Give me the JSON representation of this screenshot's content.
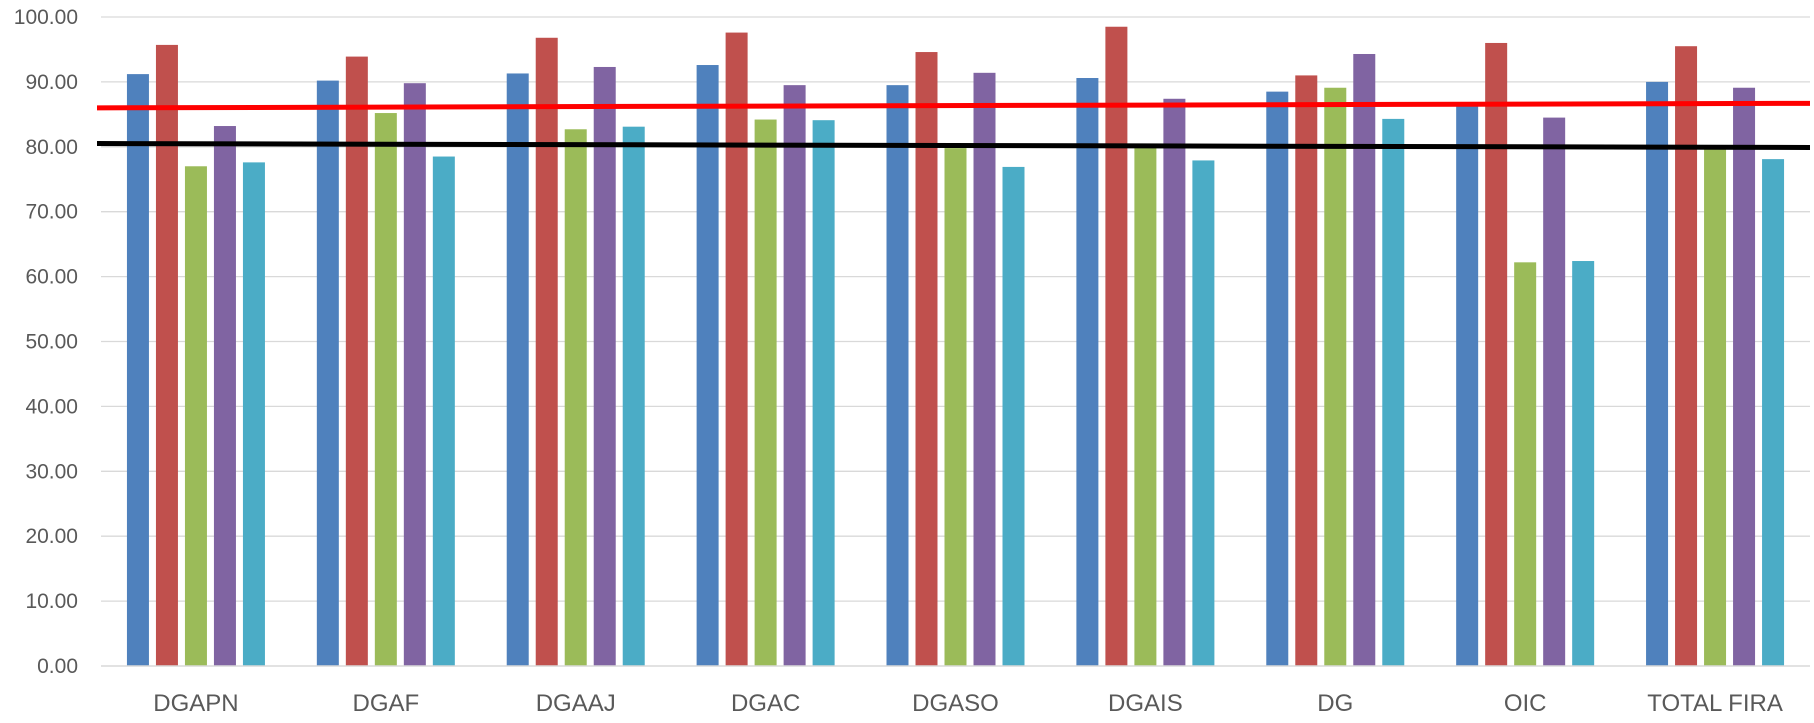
{
  "chart_data": {
    "type": "bar",
    "title": "",
    "xlabel": "",
    "ylabel": "",
    "ylim": [
      0,
      100
    ],
    "y_tick_step": 10,
    "y_tick_labels": [
      "0.00",
      "10.00",
      "20.00",
      "30.00",
      "40.00",
      "50.00",
      "60.00",
      "70.00",
      "80.00",
      "90.00",
      "100.00"
    ],
    "grid": true,
    "legend": "none",
    "categories": [
      "DGAPN",
      "DGAF",
      "DGAAJ",
      "DGAC",
      "DGASO",
      "DGAIS",
      "DG",
      "OIC",
      "TOTAL FIRA"
    ],
    "series": [
      {
        "color": "#4F81BD",
        "values": [
          91.2,
          90.2,
          91.3,
          92.6,
          89.5,
          90.6,
          88.5,
          86.5,
          90.0
        ]
      },
      {
        "color": "#C0504D",
        "values": [
          95.7,
          93.9,
          96.8,
          97.6,
          94.6,
          98.5,
          91.0,
          96.0,
          95.5
        ]
      },
      {
        "color": "#9BBB59",
        "values": [
          77.0,
          85.2,
          82.7,
          84.2,
          79.8,
          79.8,
          89.1,
          62.2,
          79.8
        ]
      },
      {
        "color": "#8064A2",
        "values": [
          83.2,
          89.8,
          92.3,
          89.5,
          91.4,
          87.4,
          94.3,
          84.5,
          89.1
        ]
      },
      {
        "color": "#4BACC6",
        "values": [
          77.6,
          78.5,
          83.1,
          84.1,
          76.9,
          77.9,
          84.3,
          62.4,
          78.1
        ]
      }
    ],
    "reference_lines": [
      {
        "color": "#FF0000",
        "from": 86.0,
        "to": 86.7
      },
      {
        "color": "#000000",
        "from": 80.5,
        "to": 79.9
      }
    ]
  }
}
